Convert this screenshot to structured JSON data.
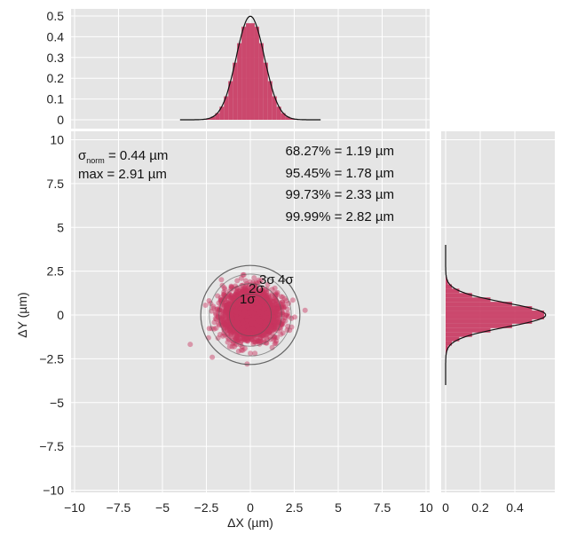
{
  "chart_data": {
    "type": "scatter",
    "xlabel": "ΔX (µm)",
    "ylabel": "ΔY (µm)",
    "xlim": [
      -10,
      10
    ],
    "ylim": [
      -10,
      10
    ],
    "xticks": [
      "−10",
      "−7.5",
      "−5",
      "−2.5",
      "0",
      "2.5",
      "5",
      "7.5",
      "10"
    ],
    "yticks": [
      "10",
      "7.5",
      "5",
      "2.5",
      "0",
      "−2.5",
      "−5",
      "−7.5",
      "−10"
    ],
    "xtick_values": [
      -10,
      -7.5,
      -5,
      -2.5,
      0,
      2.5,
      5,
      7.5,
      10
    ],
    "grid": true,
    "colors": {
      "points": "#c8365f",
      "panel": "#e5e5e5",
      "grid": "#ffffff",
      "circle": "#555555",
      "fit": "#111111"
    },
    "scatter_sigma": [
      0.8,
      0.69
    ],
    "annotations": {
      "sigma_norm_symbol": "σ",
      "sigma_norm_sub": "norm",
      "sigma_norm_value": " = 0.44 µm",
      "max": "max = 2.91 µm",
      "p1": "68.27% = 1.19 µm",
      "p2": "95.45% = 1.78 µm",
      "p3": "99.73% = 2.33 µm",
      "p4": "99.99% = 2.82 µm"
    },
    "circles": [
      {
        "label": "1σ",
        "radius": 1.19
      },
      {
        "label": "2σ",
        "radius": 1.78
      },
      {
        "label": "3σ",
        "radius": 2.33
      },
      {
        "label": "4σ",
        "radius": 2.82
      }
    ],
    "top_histogram": {
      "ylim": [
        0,
        0.5
      ],
      "yticks": [
        "0",
        "0.1",
        "0.2",
        "0.3",
        "0.4",
        "0.5"
      ],
      "bin_width": 0.25,
      "bin_centers": [
        -2.875,
        -2.625,
        -2.375,
        -2.125,
        -1.875,
        -1.625,
        -1.375,
        -1.125,
        -0.875,
        -0.625,
        -0.375,
        -0.125,
        0.125,
        0.375,
        0.625,
        0.875,
        1.125,
        1.375,
        1.625,
        1.875,
        2.125,
        2.375,
        2.625,
        2.875
      ],
      "values": [
        0.001,
        0.002,
        0.006,
        0.015,
        0.032,
        0.063,
        0.113,
        0.186,
        0.275,
        0.369,
        0.448,
        0.465,
        0.465,
        0.448,
        0.369,
        0.275,
        0.186,
        0.113,
        0.063,
        0.032,
        0.015,
        0.006,
        0.002,
        0.001
      ],
      "fit_sigma": 0.8
    },
    "right_histogram": {
      "xlim": [
        0,
        0.6
      ],
      "xticks": [
        "0",
        "0.2",
        "0.4"
      ],
      "bin_width": 0.25,
      "bin_centers": [
        -2.375,
        -2.125,
        -1.875,
        -1.625,
        -1.375,
        -1.125,
        -0.875,
        -0.625,
        -0.375,
        -0.125,
        0.125,
        0.375,
        0.625,
        0.875,
        1.125,
        1.375,
        1.625,
        1.875,
        2.125,
        2.375
      ],
      "values": [
        0.002,
        0.005,
        0.014,
        0.036,
        0.079,
        0.153,
        0.259,
        0.384,
        0.499,
        0.569,
        0.569,
        0.499,
        0.384,
        0.259,
        0.153,
        0.079,
        0.036,
        0.014,
        0.005,
        0.002
      ],
      "fit_sigma": 0.69
    }
  }
}
